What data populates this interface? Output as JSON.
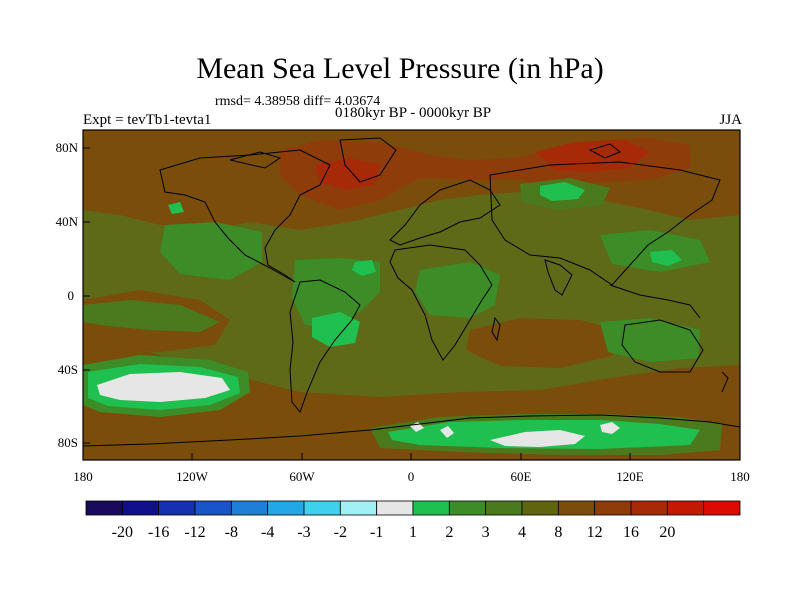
{
  "plot": {
    "title": "Mean Sea Level Pressure (in hPa)",
    "stats": "rmsd= 4.38958 diff= 4.03674",
    "subtitle": "0180kyr BP - 0000kyr BP",
    "left_label": "Expt = tevTb1-tevta1",
    "right_label": "JJA"
  },
  "axes": {
    "lat_labels": [
      "80N",
      "40N",
      "0",
      "40S",
      "80S"
    ],
    "lon_labels": [
      "180",
      "120W",
      "60W",
      "0",
      "60E",
      "120E",
      "180"
    ]
  },
  "colorbar": {
    "colors": [
      "#1a0a5e",
      "#10108a",
      "#1530b0",
      "#1a55c8",
      "#1f7fd6",
      "#22a8e6",
      "#3fd0ee",
      "#a0f0f5",
      "#e6e6e6",
      "#1fc050",
      "#3c8c28",
      "#4b7a1e",
      "#60640f",
      "#7a4e0a",
      "#8e3c0a",
      "#a62a08",
      "#c41805",
      "#dc0a03"
    ],
    "labels": [
      "-20",
      "-16",
      "-12",
      "-8",
      "-4",
      "-3",
      "-2",
      "-1",
      "1",
      "2",
      "3",
      "4",
      "8",
      "12",
      "16",
      "20"
    ]
  },
  "palette": {
    "background": "#5e6a18",
    "brown": "#7a4e0a",
    "rust": "#8e3c0a",
    "red": "#a62a08",
    "green_dark": "#3c8c28",
    "green_mid": "#4b7a1e",
    "green_bright": "#1fc050",
    "white": "#e6e6e6"
  }
}
